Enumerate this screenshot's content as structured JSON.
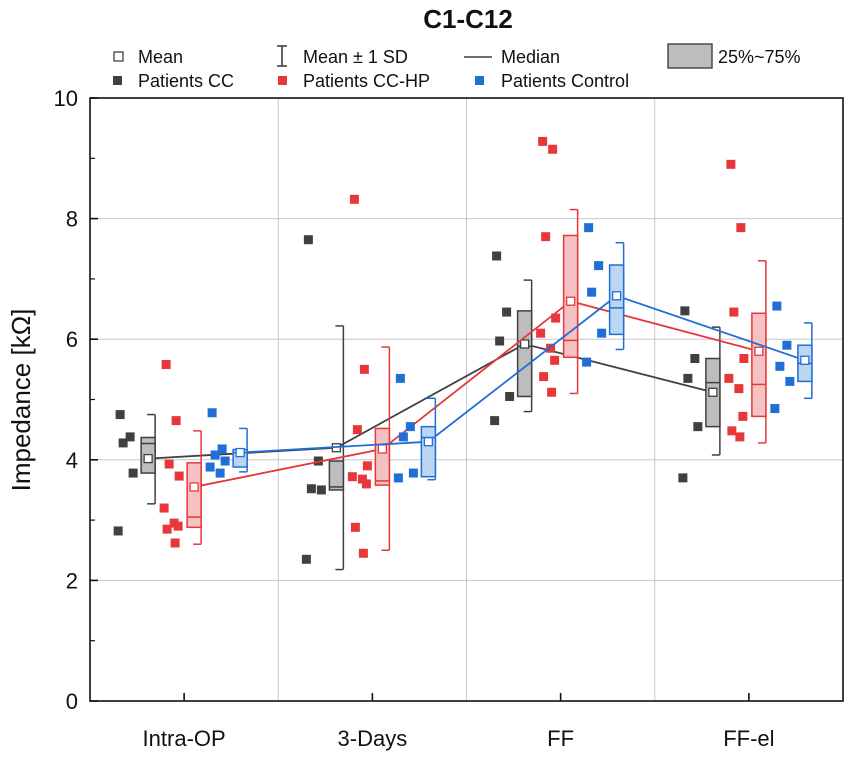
{
  "chart_data": {
    "type": "box",
    "title": "C1-C12",
    "xlabel": "",
    "ylabel": "Impedance [kΩ]",
    "ylim": [
      0,
      10
    ],
    "yticks": [
      "0",
      "2",
      "4",
      "6",
      "8",
      "10"
    ],
    "categories": [
      "Intra-OP",
      "3-Days",
      "FF",
      "FF-el"
    ],
    "grid": true,
    "legend": {
      "mean": "Mean",
      "sd": "Mean ± 1 SD",
      "median": "Median",
      "iqr": "25%~75%",
      "series_labels": [
        "Patients CC",
        "Patients CC-HP",
        "Patients Control"
      ]
    },
    "series": [
      {
        "name": "Patients CC",
        "color": "#404040",
        "fill": "#bdbdbd",
        "mean": [
          4.02,
          4.2,
          5.92,
          5.12
        ],
        "sd_low": [
          3.27,
          2.18,
          4.8,
          4.08
        ],
        "sd_high": [
          4.75,
          6.22,
          6.98,
          6.2
        ],
        "q1": [
          3.78,
          3.5,
          5.05,
          4.55
        ],
        "q3": [
          4.37,
          3.98,
          6.47,
          5.68
        ],
        "median": [
          4.27,
          3.55,
          5.88,
          5.28
        ],
        "points": [
          [
            4.75,
            4.38,
            4.28,
            3.78,
            2.82
          ],
          [
            7.65,
            3.98,
            3.52,
            3.5,
            2.35
          ],
          [
            7.38,
            6.45,
            5.97,
            5.05,
            4.65
          ],
          [
            6.47,
            5.68,
            5.35,
            4.55,
            3.7
          ]
        ]
      },
      {
        "name": "Patients CC-HP",
        "color": "#e8373b",
        "fill": "#f6c1c2",
        "mean": [
          3.55,
          4.18,
          6.63,
          5.8
        ],
        "sd_low": [
          2.6,
          2.5,
          5.1,
          4.28
        ],
        "sd_high": [
          4.48,
          5.87,
          8.15,
          7.3
        ],
        "q1": [
          2.88,
          3.58,
          5.7,
          4.72
        ],
        "q3": [
          3.95,
          4.52,
          7.72,
          6.43
        ],
        "median": [
          3.05,
          3.65,
          5.98,
          5.25
        ],
        "points": [
          [
            5.58,
            4.65,
            3.93,
            3.73,
            3.2,
            2.95,
            2.9,
            2.85,
            2.62
          ],
          [
            8.32,
            5.5,
            4.5,
            3.9,
            3.72,
            3.68,
            3.6,
            2.88,
            2.45
          ],
          [
            9.28,
            9.15,
            7.7,
            6.35,
            6.1,
            5.85,
            5.65,
            5.38,
            5.12
          ],
          [
            8.9,
            7.85,
            6.45,
            5.68,
            5.35,
            5.18,
            4.72,
            4.48,
            4.38
          ]
        ]
      },
      {
        "name": "Patients Control",
        "color": "#1f6fd6",
        "fill": "#bcd6f2",
        "mean": [
          4.12,
          4.3,
          6.72,
          5.65
        ],
        "sd_low": [
          3.8,
          3.67,
          5.83,
          5.02
        ],
        "sd_high": [
          4.52,
          5.02,
          7.6,
          6.27
        ],
        "q1": [
          3.88,
          3.72,
          6.08,
          5.3
        ],
        "q3": [
          4.17,
          4.55,
          7.23,
          5.9
        ],
        "median": [
          4.12,
          4.37,
          6.52,
          5.6
        ],
        "points": [
          [
            4.78,
            4.18,
            4.08,
            3.98,
            3.88,
            3.78
          ],
          [
            5.35,
            4.55,
            4.38,
            3.78,
            3.7
          ],
          [
            7.85,
            7.22,
            6.78,
            6.1,
            5.62
          ],
          [
            6.55,
            5.9,
            5.55,
            5.3,
            4.85
          ]
        ]
      }
    ]
  }
}
